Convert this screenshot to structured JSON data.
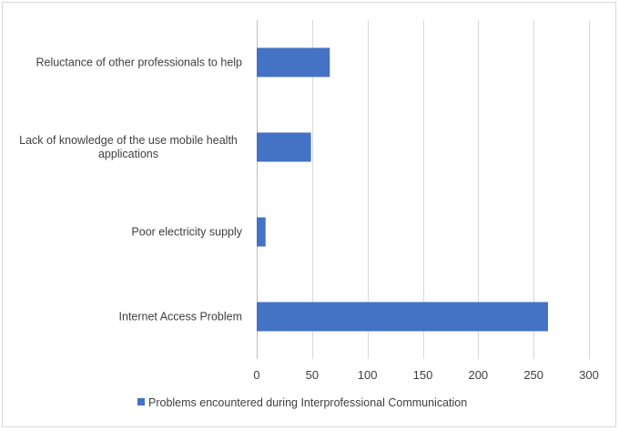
{
  "chart_data": {
    "type": "bar",
    "orientation": "horizontal",
    "categories": [
      [
        "Reluctance of other professionals to help"
      ],
      [
        "Lack of knowledge  of the use mobile health",
        "applications"
      ],
      [
        "Poor electricity supply"
      ],
      [
        "Internet Access Problem"
      ]
    ],
    "series": [
      {
        "name": "Problems encountered during Interprofessional Communication",
        "values": [
          66,
          49,
          8,
          263
        ],
        "color": "#4472c4"
      }
    ],
    "xlim": [
      0,
      300
    ],
    "xticks": [
      0,
      50,
      100,
      150,
      200,
      250,
      300
    ],
    "grid": true,
    "legend_position": "bottom"
  }
}
